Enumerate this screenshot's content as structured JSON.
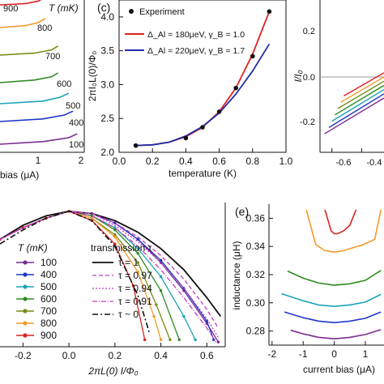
{
  "colors": {
    "T100": "#7b2b8f",
    "T400": "#1f36c8",
    "T500": "#1aa3b8",
    "T600": "#2e8b22",
    "T700": "#7a8b14",
    "T800": "#f29a28",
    "T900": "#dd2222",
    "fit_a": "#e02020",
    "fit_b": "#1f2ea8",
    "axis": "#111111"
  },
  "panels": {
    "a": {
      "ylabel": "T (mK)",
      "xlabel_tail": "bias (μA)",
      "x_ticks": [
        "1",
        "2"
      ],
      "curve_labels": [
        "900",
        "800",
        "700",
        "600",
        "500",
        "400",
        "100"
      ]
    },
    "b": {
      "panel_label": "(c)",
      "xlabel": "temperature (K)",
      "ylabel": "2πI₀L(0)/Φ₀",
      "x_ticks": [
        "0.0",
        "0.2",
        "0.4",
        "0.6",
        "0.8",
        "1.0"
      ],
      "y_ticks": [
        "2.0",
        "2.5",
        "3.0",
        "3.5",
        "4.0"
      ],
      "legend": {
        "experiment": "Experiment",
        "fit1": "Δ_Al = 180μeV, γ_B = 1.0",
        "fit2": "Δ_Al = 220μeV, γ_B = 1.7"
      }
    },
    "c": {
      "ylabel": "I/I₀",
      "y_ticks": [
        "0.2",
        "0.0",
        "-0.2"
      ],
      "x_ticks": [
        "-0.6",
        "-0.4"
      ]
    },
    "d": {
      "xlabel": "2πL(0) I/Φ₀",
      "x_ticks": [
        "-0.2",
        "0.0",
        "0.2",
        "0.4",
        "0.6"
      ],
      "legend_T_title": "T (mK)",
      "legend_T": [
        "100",
        "400",
        "500",
        "600",
        "700",
        "800",
        "900"
      ],
      "legend_tau_title": "transmission τ",
      "legend_tau": [
        "τ = 1",
        "τ = 0.97",
        "τ = 0.94",
        "τ = 0.91",
        "τ ~ 0"
      ]
    },
    "e": {
      "panel_label": "(e)",
      "ylabel": "inductance (μH)",
      "xlabel": "current bias (μA)",
      "y_ticks": [
        "0.36",
        "0.34",
        "0.32",
        "0.30",
        "0.28"
      ],
      "x_ticks": [
        "-2",
        "-1",
        "0",
        "1"
      ]
    }
  },
  "chart_data": [
    {
      "type": "line",
      "panel": "a",
      "xlabel": "bias (μA)",
      "ylabel": "T (mK)",
      "x_ticks": [
        1,
        2
      ],
      "series": [
        {
          "name": "900",
          "x": [
            0.0,
            0.6,
            0.9,
            1.05
          ],
          "y": [
            0.0,
            0.02,
            0.06,
            0.12
          ]
        },
        {
          "name": "800",
          "x": [
            0.0,
            0.6,
            0.9,
            1.05
          ],
          "y": [
            0.0,
            0.03,
            0.08,
            0.14
          ]
        },
        {
          "name": "700",
          "x": [
            0.0,
            0.8,
            1.2,
            1.35
          ],
          "y": [
            0.0,
            0.03,
            0.08,
            0.14
          ]
        },
        {
          "name": "600",
          "x": [
            0.0,
            0.8,
            1.2,
            1.35
          ],
          "y": [
            0.0,
            0.04,
            0.09,
            0.15
          ]
        },
        {
          "name": "500",
          "x": [
            0.0,
            1.0,
            1.4,
            1.6
          ],
          "y": [
            0.0,
            0.04,
            0.1,
            0.16
          ]
        },
        {
          "name": "400",
          "x": [
            0.0,
            1.0,
            1.5,
            1.7
          ],
          "y": [
            0.0,
            0.04,
            0.1,
            0.16
          ]
        },
        {
          "name": "100",
          "x": [
            0.0,
            1.0,
            1.6,
            1.8
          ],
          "y": [
            0.0,
            0.04,
            0.1,
            0.16
          ]
        }
      ]
    },
    {
      "type": "scatter",
      "panel": "c",
      "xlabel": "temperature (K)",
      "ylabel": "2πI₀L(0)/Φ₀",
      "xlim": [
        0.0,
        1.0
      ],
      "ylim": [
        2.0,
        4.25
      ],
      "series": [
        {
          "name": "Experiment",
          "x": [
            0.1,
            0.4,
            0.5,
            0.6,
            0.7,
            0.8,
            0.9
          ],
          "y": [
            2.1,
            2.21,
            2.37,
            2.6,
            2.95,
            3.42,
            4.08
          ]
        },
        {
          "name": "Δ_Al = 180μeV, γ_B = 1.0",
          "x": [
            0.1,
            0.2,
            0.3,
            0.4,
            0.5,
            0.6,
            0.7,
            0.8,
            0.9
          ],
          "y": [
            2.1,
            2.11,
            2.15,
            2.23,
            2.37,
            2.6,
            2.95,
            3.45,
            4.08
          ]
        },
        {
          "name": "Δ_Al = 220μeV, γ_B = 1.7",
          "x": [
            0.1,
            0.2,
            0.3,
            0.4,
            0.5,
            0.6,
            0.7,
            0.8,
            0.9
          ],
          "y": [
            2.1,
            2.11,
            2.15,
            2.24,
            2.38,
            2.58,
            2.86,
            3.2,
            3.6
          ]
        }
      ]
    },
    {
      "type": "line",
      "panel": "c-right",
      "ylabel": "I/I₀",
      "x_ticks": [
        -0.6,
        -0.4
      ],
      "ylim": [
        -0.3,
        0.35
      ],
      "series": [
        {
          "name": "100",
          "x": [
            -0.65,
            -0.25
          ],
          "y": [
            -0.27,
            -0.1
          ]
        },
        {
          "name": "400",
          "x": [
            -0.62,
            -0.25
          ],
          "y": [
            -0.24,
            -0.08
          ]
        },
        {
          "name": "500",
          "x": [
            -0.6,
            -0.25
          ],
          "y": [
            -0.21,
            -0.06
          ]
        },
        {
          "name": "600",
          "x": [
            -0.58,
            -0.25
          ],
          "y": [
            -0.18,
            -0.04
          ]
        },
        {
          "name": "700",
          "x": [
            -0.56,
            -0.25
          ],
          "y": [
            -0.15,
            -0.02
          ]
        },
        {
          "name": "800",
          "x": [
            -0.54,
            -0.25
          ],
          "y": [
            -0.12,
            0.0
          ]
        },
        {
          "name": "900",
          "x": [
            -0.52,
            -0.25
          ],
          "y": [
            -0.09,
            0.02
          ]
        }
      ]
    },
    {
      "type": "line",
      "panel": "d",
      "xlabel": "2πL(0) I/Φ₀",
      "xlim": [
        -0.3,
        0.68
      ],
      "series": [
        {
          "name": "100",
          "x": [
            -0.3,
            -0.2,
            -0.1,
            0.0,
            0.1,
            0.2,
            0.3,
            0.4,
            0.5,
            0.6,
            0.65
          ],
          "y": [
            0.88,
            0.93,
            0.97,
            1.0,
            0.99,
            0.95,
            0.88,
            0.78,
            0.66,
            0.52,
            0.44
          ]
        },
        {
          "name": "400",
          "x": [
            -0.3,
            -0.2,
            -0.1,
            0.0,
            0.1,
            0.2,
            0.3,
            0.4,
            0.5,
            0.6,
            0.63
          ],
          "y": [
            0.88,
            0.93,
            0.97,
            1.0,
            0.99,
            0.95,
            0.88,
            0.79,
            0.67,
            0.53,
            0.45
          ]
        },
        {
          "name": "500",
          "x": [
            -0.3,
            -0.2,
            -0.1,
            0.0,
            0.1,
            0.2,
            0.3,
            0.4,
            0.5,
            0.55
          ],
          "y": [
            0.88,
            0.93,
            0.97,
            1.0,
            0.98,
            0.93,
            0.84,
            0.72,
            0.55,
            0.45
          ]
        },
        {
          "name": "600",
          "x": [
            -0.3,
            -0.2,
            -0.1,
            0.0,
            0.1,
            0.2,
            0.3,
            0.4,
            0.48
          ],
          "y": [
            0.88,
            0.93,
            0.97,
            1.0,
            0.98,
            0.92,
            0.82,
            0.66,
            0.45
          ]
        },
        {
          "name": "700",
          "x": [
            -0.3,
            -0.2,
            -0.1,
            0.0,
            0.1,
            0.2,
            0.3,
            0.38,
            0.44
          ],
          "y": [
            0.88,
            0.93,
            0.97,
            1.0,
            0.97,
            0.9,
            0.78,
            0.6,
            0.45
          ]
        },
        {
          "name": "800",
          "x": [
            -0.3,
            -0.2,
            -0.1,
            0.0,
            0.1,
            0.2,
            0.3,
            0.37,
            0.4
          ],
          "y": [
            0.88,
            0.93,
            0.97,
            1.0,
            0.97,
            0.89,
            0.74,
            0.55,
            0.45
          ]
        },
        {
          "name": "900",
          "x": [
            -0.3,
            -0.2,
            -0.1,
            0.0,
            0.1,
            0.2,
            0.28,
            0.33
          ],
          "y": [
            0.88,
            0.93,
            0.97,
            1.0,
            0.96,
            0.86,
            0.68,
            0.45
          ]
        },
        {
          "name": "τ = 1",
          "x": [
            -0.3,
            -0.2,
            -0.1,
            0.0,
            0.1,
            0.2,
            0.3,
            0.4,
            0.5,
            0.6,
            0.66
          ],
          "y": [
            0.88,
            0.94,
            0.98,
            1.0,
            0.99,
            0.96,
            0.91,
            0.84,
            0.75,
            0.63,
            0.55
          ]
        },
        {
          "name": "τ = 0.97",
          "x": [
            -0.3,
            -0.2,
            -0.1,
            0.0,
            0.1,
            0.2,
            0.3,
            0.4,
            0.5,
            0.6,
            0.65
          ],
          "y": [
            0.88,
            0.93,
            0.97,
            1.0,
            0.99,
            0.95,
            0.89,
            0.81,
            0.71,
            0.58,
            0.5
          ]
        },
        {
          "name": "τ = 0.94",
          "x": [
            -0.3,
            -0.2,
            -0.1,
            0.0,
            0.1,
            0.2,
            0.3,
            0.4,
            0.5,
            0.6,
            0.65
          ],
          "y": [
            0.88,
            0.93,
            0.97,
            1.0,
            0.99,
            0.94,
            0.87,
            0.78,
            0.67,
            0.54,
            0.46
          ]
        },
        {
          "name": "τ = 0.91",
          "x": [
            -0.3,
            -0.2,
            -0.1,
            0.0,
            0.1,
            0.2,
            0.3,
            0.4,
            0.5,
            0.6,
            0.64
          ],
          "y": [
            0.88,
            0.93,
            0.97,
            1.0,
            0.98,
            0.93,
            0.85,
            0.75,
            0.63,
            0.5,
            0.44
          ]
        },
        {
          "name": "τ ~ 0",
          "x": [
            -0.3,
            -0.2,
            -0.1,
            0.0,
            0.1,
            0.2,
            0.3,
            0.35
          ],
          "y": [
            0.86,
            0.92,
            0.97,
            1.0,
            0.96,
            0.85,
            0.64,
            0.48
          ]
        }
      ]
    },
    {
      "type": "line",
      "panel": "e",
      "xlabel": "current bias (μA)",
      "ylabel": "inductance (μH)",
      "xlim": [
        -2.1,
        1.6
      ],
      "ylim": [
        0.27,
        0.37
      ],
      "series": [
        {
          "name": "100",
          "x": [
            -1.4,
            -1.0,
            -0.5,
            0.0,
            0.5,
            1.0,
            1.5
          ],
          "y": [
            0.2805,
            0.278,
            0.2755,
            0.2745,
            0.2755,
            0.2775,
            0.281
          ]
        },
        {
          "name": "400",
          "x": [
            -1.6,
            -1.0,
            -0.5,
            0.0,
            0.5,
            1.0,
            1.5
          ],
          "y": [
            0.2935,
            0.2895,
            0.287,
            0.286,
            0.287,
            0.289,
            0.2935
          ]
        },
        {
          "name": "500",
          "x": [
            -1.7,
            -1.0,
            -0.5,
            0.0,
            0.5,
            1.0,
            1.5
          ],
          "y": [
            0.3065,
            0.3015,
            0.2985,
            0.2975,
            0.2985,
            0.3005,
            0.306
          ]
        },
        {
          "name": "600",
          "x": [
            -1.5,
            -1.0,
            -0.5,
            0.0,
            0.5,
            1.0,
            1.5
          ],
          "y": [
            0.3225,
            0.3175,
            0.314,
            0.3125,
            0.3135,
            0.316,
            0.323
          ]
        },
        {
          "name": "800",
          "x": [
            -0.9,
            -0.6,
            -0.3,
            0.0,
            0.3,
            0.6,
            0.9,
            1.3,
            1.5
          ],
          "y": [
            0.366,
            0.3415,
            0.337,
            0.336,
            0.337,
            0.339,
            0.341,
            0.345,
            0.366
          ]
        },
        {
          "name": "900",
          "x": [
            -0.3,
            -0.1,
            0.0,
            0.1,
            0.3,
            0.5,
            0.7
          ],
          "y": [
            0.366,
            0.351,
            0.349,
            0.349,
            0.351,
            0.355,
            0.366
          ]
        }
      ]
    }
  ]
}
